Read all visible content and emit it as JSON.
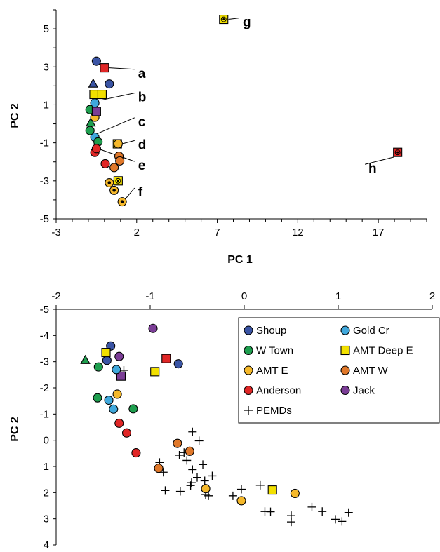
{
  "colors": {
    "Shoup": "#3a54a4",
    "Gold Cr": "#40a8dc",
    "W Town": "#1e9e4e",
    "AMT Deep E": "#f2e000",
    "AMT E": "#f5b82a",
    "AMT W": "#e0782a",
    "Anderson": "#e02626",
    "Jack": "#7b3d96",
    "PEMDs": "#000000"
  },
  "chart_data": [
    {
      "type": "scatter",
      "xlabel": "PC 1",
      "ylabel": "PC 2",
      "xlim": [
        -3,
        20
      ],
      "ylim": [
        -5,
        6
      ],
      "xticks": [
        -3,
        2,
        7,
        12,
        17
      ],
      "yticks": [
        -5,
        -3,
        -1,
        1,
        3,
        5
      ],
      "y_reversed": false,
      "series": [
        {
          "group": "Shoup",
          "marker": "circle",
          "points": [
            [
              -0.5,
              3.3
            ],
            [
              0.3,
              2.1
            ]
          ]
        },
        {
          "group": "Gold Cr",
          "marker": "circle",
          "points": [
            [
              -0.6,
              1.1
            ],
            [
              -0.6,
              -0.7
            ]
          ]
        },
        {
          "group": "W Town",
          "marker": "circle",
          "points": [
            [
              -0.9,
              0.75
            ],
            [
              -0.9,
              -0.35
            ],
            [
              -0.4,
              -0.95
            ]
          ]
        },
        {
          "group": "W Town",
          "marker": "triangle",
          "points": [
            [
              -0.85,
              0.05
            ]
          ]
        },
        {
          "group": "Shoup",
          "marker": "triangle",
          "points": [
            [
              -0.7,
              2.1
            ]
          ]
        },
        {
          "group": "AMT Deep E",
          "marker": "square",
          "points": [
            [
              -0.65,
              1.55
            ],
            [
              -0.15,
              1.55
            ],
            [
              0.8,
              -1.05
            ]
          ]
        },
        {
          "group": "AMT E",
          "marker": "circle",
          "points": [
            [
              -0.6,
              0.35
            ],
            [
              0.85,
              -1.05
            ]
          ]
        },
        {
          "group": "AMT E",
          "marker": "circle-dot",
          "points": [
            [
              0.3,
              -3.1
            ],
            [
              0.6,
              -3.5
            ],
            [
              1.1,
              -4.1
            ]
          ]
        },
        {
          "group": "AMT Deep E",
          "marker": "square-dot",
          "points": [
            [
              0.85,
              -3.0
            ],
            [
              7.4,
              5.5
            ]
          ]
        },
        {
          "group": "AMT W",
          "marker": "circle",
          "points": [
            [
              0.9,
              -1.7
            ],
            [
              0.95,
              -1.95
            ],
            [
              0.6,
              -2.3
            ]
          ]
        },
        {
          "group": "Anderson",
          "marker": "circle",
          "points": [
            [
              -0.6,
              -1.5
            ],
            [
              -0.5,
              -1.3
            ],
            [
              0.05,
              -2.1
            ]
          ]
        },
        {
          "group": "Anderson",
          "marker": "square",
          "points": [
            [
              0,
              2.95
            ]
          ]
        },
        {
          "group": "Anderson",
          "marker": "square-dot",
          "points": [
            [
              18.2,
              -1.5
            ]
          ]
        },
        {
          "group": "Jack",
          "marker": "square",
          "points": [
            [
              -0.5,
              0.65
            ]
          ]
        }
      ],
      "annotations": [
        {
          "text": "a",
          "x": 2.0,
          "y": 2.65,
          "from": [
            0.3,
            2.95
          ]
        },
        {
          "text": "b",
          "x": 2.0,
          "y": 1.4,
          "from": [
            -0.2,
            1.25
          ]
        },
        {
          "text": "c",
          "x": 2.0,
          "y": 0.1,
          "from": [
            -0.4,
            -0.5
          ]
        },
        {
          "text": "d",
          "x": 2.0,
          "y": -1.1,
          "from": [
            1.1,
            -1.05
          ]
        },
        {
          "text": "e",
          "x": 2.0,
          "y": -2.2,
          "from": [
            -0.25,
            -1.35
          ]
        },
        {
          "text": "f",
          "x": 2.0,
          "y": -3.6,
          "from": [
            1.3,
            -3.95
          ]
        },
        {
          "text": "g",
          "x": 8.5,
          "y": 5.35,
          "from": [
            7.7,
            5.5
          ]
        },
        {
          "text": "h",
          "x": 16.3,
          "y": -2.35,
          "from": [
            17.95,
            -1.75
          ]
        }
      ]
    },
    {
      "type": "scatter",
      "xlabel": "",
      "ylabel": "PC 2",
      "xlim": [
        -2,
        2
      ],
      "ylim": [
        -5,
        4
      ],
      "xticks": [
        -2,
        -1,
        0,
        1,
        2
      ],
      "yticks": [
        -5,
        -4,
        -3,
        -2,
        -1,
        0,
        1,
        2,
        3,
        4
      ],
      "y_reversed": true,
      "legend_position": "top-right",
      "legend": [
        "Shoup",
        "Gold Cr",
        "W Town",
        "AMT Deep E",
        "AMT E",
        "AMT W",
        "Anderson",
        "Jack",
        "PEMDs"
      ],
      "series": [
        {
          "group": "Jack",
          "marker": "circle",
          "points": [
            [
              -0.97,
              -4.27
            ],
            [
              -1.33,
              -3.2
            ]
          ]
        },
        {
          "group": "Jack",
          "marker": "square",
          "points": [
            [
              -1.31,
              -2.45
            ]
          ]
        },
        {
          "group": "Shoup",
          "marker": "circle",
          "points": [
            [
              -1.42,
              -3.6
            ],
            [
              -1.46,
              -3.05
            ],
            [
              -0.7,
              -2.92
            ]
          ]
        },
        {
          "group": "Gold Cr",
          "marker": "circle",
          "points": [
            [
              -1.36,
              -2.7
            ],
            [
              -1.44,
              -1.53
            ],
            [
              -1.39,
              -1.19
            ]
          ]
        },
        {
          "group": "W Town",
          "marker": "triangle",
          "points": [
            [
              -1.69,
              -3.05
            ]
          ]
        },
        {
          "group": "W Town",
          "marker": "circle",
          "points": [
            [
              -1.55,
              -2.8
            ],
            [
              -1.56,
              -1.62
            ],
            [
              -1.18,
              -1.2
            ]
          ]
        },
        {
          "group": "AMT Deep E",
          "marker": "square",
          "points": [
            [
              -1.47,
              -3.35
            ],
            [
              -0.95,
              -2.62
            ],
            [
              0.3,
              1.9
            ]
          ]
        },
        {
          "group": "Anderson",
          "marker": "square",
          "points": [
            [
              -0.83,
              -3.12
            ]
          ]
        },
        {
          "group": "Anderson",
          "marker": "circle",
          "points": [
            [
              -1.33,
              -0.65
            ],
            [
              -1.25,
              -0.28
            ],
            [
              -1.15,
              0.48
            ]
          ]
        },
        {
          "group": "AMT E",
          "marker": "circle",
          "points": [
            [
              -1.35,
              -1.76
            ],
            [
              -0.41,
              1.85
            ],
            [
              -0.03,
              2.31
            ],
            [
              0.54,
              2.03
            ]
          ]
        },
        {
          "group": "AMT W",
          "marker": "circle",
          "points": [
            [
              -0.58,
              0.42
            ],
            [
              -0.71,
              0.12
            ],
            [
              -0.91,
              1.07
            ]
          ]
        },
        {
          "group": "PEMDs",
          "marker": "plus",
          "points": [
            [
              -1.28,
              -2.67
            ],
            [
              -0.55,
              -0.32
            ],
            [
              -0.48,
              0.02
            ],
            [
              -0.9,
              0.85
            ],
            [
              -0.86,
              1.22
            ],
            [
              -0.69,
              0.57
            ],
            [
              -0.61,
              0.77
            ],
            [
              -0.64,
              0.47
            ],
            [
              -0.44,
              0.93
            ],
            [
              -0.55,
              1.12
            ],
            [
              -0.56,
              1.62
            ],
            [
              -0.5,
              1.42
            ],
            [
              -0.42,
              1.55
            ],
            [
              -0.34,
              1.36
            ],
            [
              -0.57,
              1.73
            ],
            [
              -0.41,
              1.92
            ],
            [
              -0.41,
              2.07
            ],
            [
              -0.38,
              2.12
            ],
            [
              -0.84,
              1.92
            ],
            [
              -0.68,
              1.95
            ],
            [
              -0.12,
              2.12
            ],
            [
              -0.03,
              1.87
            ],
            [
              0.17,
              1.72
            ],
            [
              0.22,
              2.72
            ],
            [
              0.28,
              2.73
            ],
            [
              0.5,
              2.88
            ],
            [
              0.5,
              3.12
            ],
            [
              0.72,
              2.55
            ],
            [
              0.83,
              2.72
            ],
            [
              0.97,
              3.02
            ],
            [
              1.04,
              3.1
            ],
            [
              1.11,
              2.76
            ]
          ]
        }
      ]
    }
  ]
}
